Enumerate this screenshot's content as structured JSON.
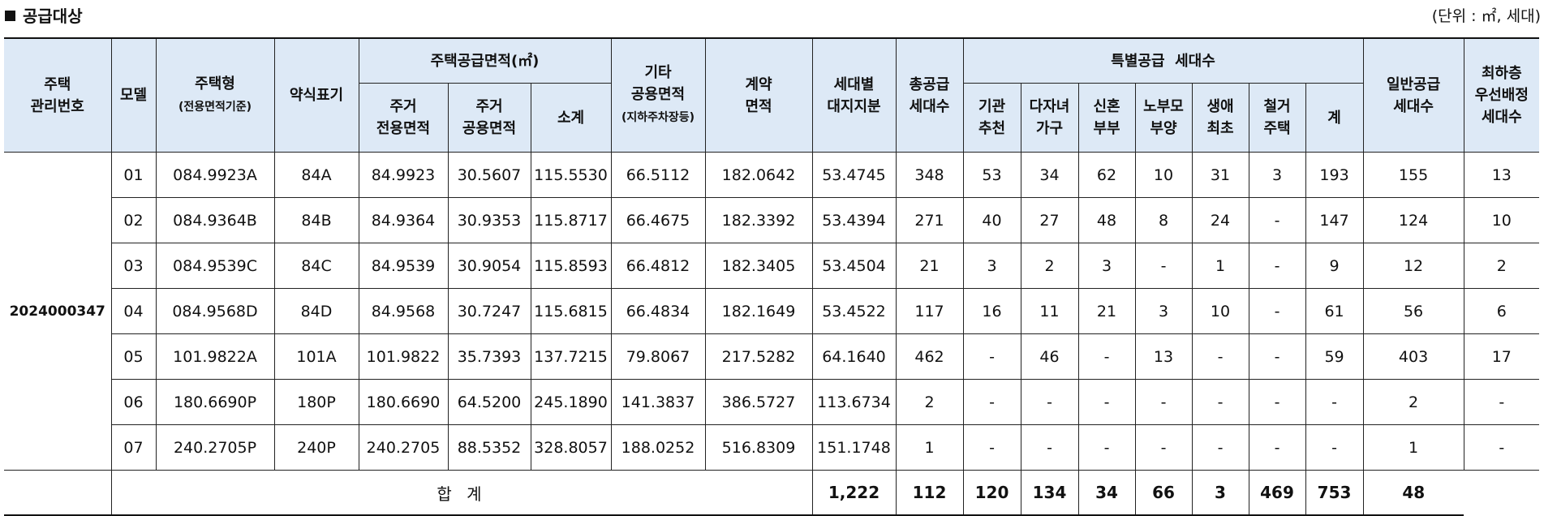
{
  "title": "공급대상",
  "unit": "(단위 : ㎡, 세대)",
  "headers": {
    "mgmt_no": [
      "주택",
      "관리번호"
    ],
    "model": "모델",
    "type": [
      "주택형",
      "(전용면적기준)"
    ],
    "short": "약식표기",
    "area_group": "주택공급면적(㎡)",
    "area_excl": [
      "주거",
      "전용면적"
    ],
    "area_common": [
      "주거",
      "공용면적"
    ],
    "area_sub": "소계",
    "etc_common": [
      "기타",
      "공용면적",
      "(지하주차장등)"
    ],
    "contract": [
      "계약",
      "면적"
    ],
    "land": [
      "세대별",
      "대지지분"
    ],
    "total_supply": [
      "총공급",
      "세대수"
    ],
    "special_group": "특별공급  세대수",
    "sp_inst": [
      "기관",
      "추천"
    ],
    "sp_multi": [
      "다자녀",
      "가구"
    ],
    "sp_newlywed": [
      "신혼",
      "부부"
    ],
    "sp_parents": [
      "노부모",
      "부양"
    ],
    "sp_first": [
      "생애",
      "최초"
    ],
    "sp_demol": [
      "철거",
      "주택"
    ],
    "sp_sum": "계",
    "general": [
      "일반공급",
      "세대수"
    ],
    "lowest": [
      "최하층",
      "우선배정",
      "세대수"
    ]
  },
  "mgmt_id": "2024000347",
  "rows": [
    [
      "01",
      "084.9923A",
      "84A",
      "84.9923",
      "30.5607",
      "115.5530",
      "66.5112",
      "182.0642",
      "53.4745",
      "348",
      "53",
      "34",
      "62",
      "10",
      "31",
      "3",
      "193",
      "155",
      "13"
    ],
    [
      "02",
      "084.9364B",
      "84B",
      "84.9364",
      "30.9353",
      "115.8717",
      "66.4675",
      "182.3392",
      "53.4394",
      "271",
      "40",
      "27",
      "48",
      "8",
      "24",
      "-",
      "147",
      "124",
      "10"
    ],
    [
      "03",
      "084.9539C",
      "84C",
      "84.9539",
      "30.9054",
      "115.8593",
      "66.4812",
      "182.3405",
      "53.4504",
      "21",
      "3",
      "2",
      "3",
      "-",
      "1",
      "-",
      "9",
      "12",
      "2"
    ],
    [
      "04",
      "084.9568D",
      "84D",
      "84.9568",
      "30.7247",
      "115.6815",
      "66.4834",
      "182.1649",
      "53.4522",
      "117",
      "16",
      "11",
      "21",
      "3",
      "10",
      "-",
      "61",
      "56",
      "6"
    ],
    [
      "05",
      "101.9822A",
      "101A",
      "101.9822",
      "35.7393",
      "137.7215",
      "79.8067",
      "217.5282",
      "64.1640",
      "462",
      "-",
      "46",
      "-",
      "13",
      "-",
      "-",
      "59",
      "403",
      "17"
    ],
    [
      "06",
      "180.6690P",
      "180P",
      "180.6690",
      "64.5200",
      "245.1890",
      "141.3837",
      "386.5727",
      "113.6734",
      "2",
      "-",
      "-",
      "-",
      "-",
      "-",
      "-",
      "-",
      "2",
      "-"
    ],
    [
      "07",
      "240.2705P",
      "240P",
      "240.2705",
      "88.5352",
      "328.8057",
      "188.0252",
      "516.8309",
      "151.1748",
      "1",
      "-",
      "-",
      "-",
      "-",
      "-",
      "-",
      "-",
      "1",
      "-"
    ]
  ],
  "total": {
    "label": "합 계",
    "values": [
      "1,222",
      "112",
      "120",
      "134",
      "34",
      "66",
      "3",
      "469",
      "753",
      "48"
    ]
  }
}
